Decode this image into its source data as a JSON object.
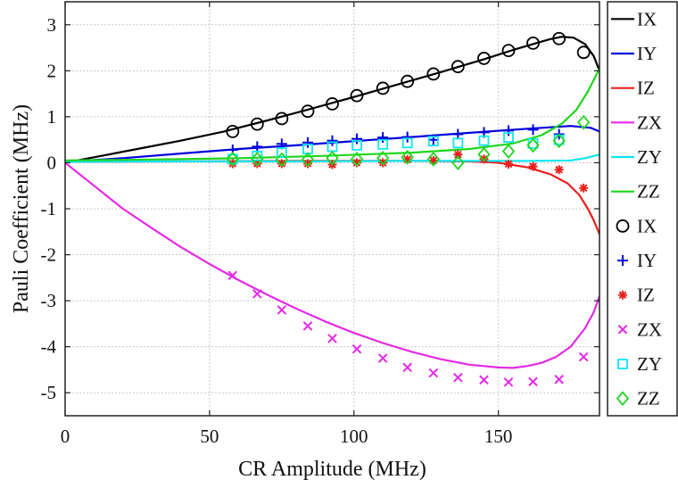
{
  "chart_data": {
    "type": "line",
    "xlabel": "CR Amplitude (MHz)",
    "ylabel": "Pauli Coefficient (MHz)",
    "xlim": [
      0,
      185
    ],
    "ylim": [
      -5.5,
      3.5
    ],
    "xticks": [
      0,
      50,
      100,
      150
    ],
    "yticks": [
      3,
      2,
      1,
      0,
      -1,
      -2,
      -3,
      -4,
      -5
    ],
    "xtick_labels": [
      "0",
      "50",
      "100",
      "150"
    ],
    "ytick_labels": [
      "3",
      "2",
      "1",
      "0",
      "-1",
      "-2",
      "-3",
      "-4",
      "-5"
    ],
    "grid": true,
    "legend_position": "right, outside",
    "legend_entries": [
      "IX",
      "IY",
      "IZ",
      "ZX",
      "ZY",
      "ZZ",
      "IX",
      "IY",
      "IZ",
      "ZX",
      "ZY",
      "ZZ"
    ],
    "colors": {
      "IX": "#000000",
      "IY": "#0000dd",
      "IZ": "#e8201c",
      "ZX": "#e52ae5",
      "ZY": "#10e6f0",
      "ZZ": "#1fd61f"
    },
    "lines": [
      {
        "name": "IX",
        "color": "#000000",
        "x": [
          0,
          10,
          25,
          40,
          55,
          70,
          85,
          100,
          115,
          130,
          145,
          155,
          163,
          168,
          172,
          176,
          180,
          183,
          185
        ],
        "y": [
          0,
          0.12,
          0.3,
          0.48,
          0.68,
          0.92,
          1.17,
          1.43,
          1.7,
          1.97,
          2.25,
          2.45,
          2.6,
          2.69,
          2.74,
          2.72,
          2.58,
          2.32,
          2.0
        ]
      },
      {
        "name": "IY",
        "color": "#0000dd",
        "x": [
          0,
          20,
          40,
          60,
          80,
          100,
          120,
          140,
          160,
          175,
          182,
          185
        ],
        "y": [
          0.02,
          0.1,
          0.2,
          0.3,
          0.38,
          0.47,
          0.56,
          0.65,
          0.74,
          0.8,
          0.76,
          0.68
        ]
      },
      {
        "name": "IZ",
        "color": "#e8201c",
        "x": [
          0,
          40,
          80,
          120,
          140,
          150,
          160,
          168,
          174,
          178,
          181,
          183,
          185
        ],
        "y": [
          0.02,
          0.03,
          0.04,
          0.04,
          0.03,
          0.0,
          -0.1,
          -0.25,
          -0.45,
          -0.7,
          -1.0,
          -1.25,
          -1.55
        ]
      },
      {
        "name": "ZX",
        "color": "#e52ae5",
        "x": [
          0,
          10,
          20,
          30,
          40,
          50,
          60,
          70,
          80,
          90,
          100,
          110,
          120,
          130,
          140,
          150,
          155,
          160,
          165,
          170,
          175,
          180,
          183,
          185
        ],
        "y": [
          0,
          -0.5,
          -1.0,
          -1.42,
          -1.83,
          -2.2,
          -2.55,
          -2.87,
          -3.17,
          -3.45,
          -3.7,
          -3.92,
          -4.11,
          -4.27,
          -4.39,
          -4.45,
          -4.46,
          -4.42,
          -4.35,
          -4.22,
          -4.0,
          -3.6,
          -3.25,
          -2.9
        ]
      },
      {
        "name": "ZY",
        "color": "#10e6f0",
        "x": [
          0,
          40,
          80,
          120,
          160,
          175,
          180,
          185
        ],
        "y": [
          0.02,
          0.03,
          0.03,
          0.04,
          0.04,
          0.05,
          0.1,
          0.18
        ]
      },
      {
        "name": "ZZ",
        "color": "#1fd61f",
        "x": [
          0,
          30,
          60,
          90,
          120,
          140,
          155,
          165,
          172,
          177,
          181,
          185
        ],
        "y": [
          0.05,
          0.07,
          0.1,
          0.15,
          0.22,
          0.3,
          0.42,
          0.6,
          0.85,
          1.15,
          1.55,
          2.05
        ]
      }
    ],
    "markers": [
      {
        "name": "IX",
        "shape": "circle",
        "color": "#000000",
        "x": [
          58,
          66.5,
          75,
          84,
          92.5,
          101,
          110,
          118.5,
          127.5,
          136,
          145,
          153.5,
          162,
          171,
          179.5
        ],
        "y": [
          0.68,
          0.84,
          0.96,
          1.12,
          1.28,
          1.46,
          1.62,
          1.77,
          1.93,
          2.09,
          2.27,
          2.44,
          2.6,
          2.7,
          2.4
        ]
      },
      {
        "name": "IY",
        "shape": "plus",
        "color": "#0000dd",
        "x": [
          58,
          66.5,
          75,
          84,
          92.5,
          101,
          110,
          118.5,
          127.5,
          136,
          145,
          153.5,
          162,
          171
        ],
        "y": [
          0.28,
          0.35,
          0.41,
          0.44,
          0.48,
          0.52,
          0.55,
          0.56,
          0.5,
          0.62,
          0.66,
          0.7,
          0.72,
          0.62
        ]
      },
      {
        "name": "IZ",
        "shape": "asterisk",
        "color": "#e8201c",
        "x": [
          58,
          66.5,
          75,
          84,
          92.5,
          101,
          110,
          118.5,
          127.5,
          136,
          145,
          153.5,
          162,
          171,
          179.5
        ],
        "y": [
          -0.02,
          -0.02,
          -0.02,
          -0.02,
          -0.04,
          0.0,
          0.0,
          0.07,
          0.05,
          0.18,
          0.08,
          -0.03,
          -0.08,
          -0.15,
          -0.55
        ]
      },
      {
        "name": "ZX",
        "shape": "cross",
        "color": "#e52ae5",
        "x": [
          58,
          66.5,
          75,
          84,
          92.5,
          101,
          110,
          118.5,
          127.5,
          136,
          145,
          153.5,
          162,
          171,
          179.5
        ],
        "y": [
          -2.45,
          -2.85,
          -3.2,
          -3.55,
          -3.82,
          -4.05,
          -4.25,
          -4.45,
          -4.57,
          -4.67,
          -4.72,
          -4.77,
          -4.76,
          -4.71,
          -4.22
        ]
      },
      {
        "name": "ZY",
        "shape": "square",
        "color": "#10e6f0",
        "x": [
          58,
          66.5,
          75,
          84,
          92.5,
          101,
          110,
          118.5,
          127.5,
          136,
          145,
          153.5,
          162,
          171
        ],
        "y": [
          0.08,
          0.15,
          0.22,
          0.3,
          0.35,
          0.38,
          0.4,
          0.43,
          0.47,
          0.43,
          0.48,
          0.55,
          0.42,
          0.5
        ]
      },
      {
        "name": "ZZ",
        "shape": "diamond",
        "color": "#1fd61f",
        "x": [
          58,
          66.5,
          75,
          84,
          92.5,
          101,
          110,
          118.5,
          127.5,
          136,
          145,
          153.5,
          162,
          171,
          179.5
        ],
        "y": [
          0.08,
          0.08,
          0.07,
          0.07,
          0.1,
          0.08,
          0.1,
          0.12,
          0.08,
          0.0,
          0.18,
          0.25,
          0.38,
          0.48,
          0.88
        ]
      }
    ]
  }
}
